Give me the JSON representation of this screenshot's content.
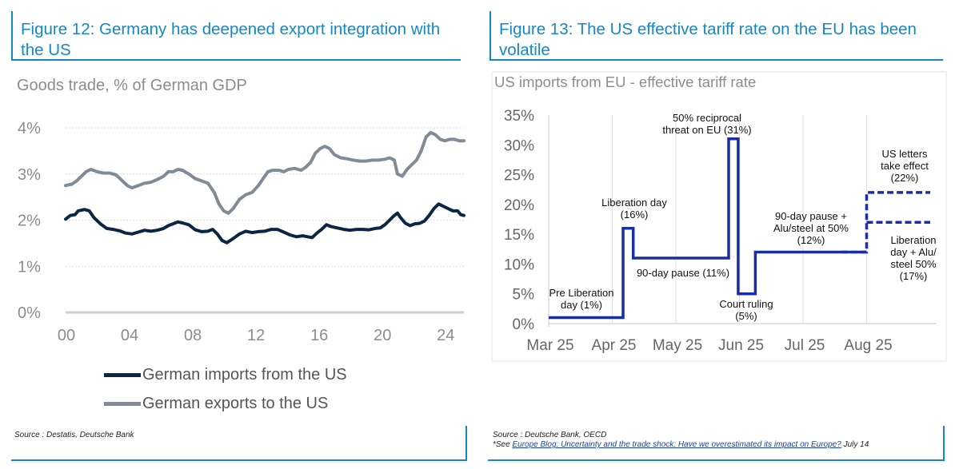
{
  "panels": {
    "left": {
      "title": "Figure 12: Germany has deepened export integration with the US",
      "subtitle": "Goods trade, % of German GDP",
      "source": "Source : Destatis, Deutsche Bank"
    },
    "right": {
      "title": "Figure 13: The US effective tariff rate on the EU has been volatile",
      "subtitle": "US imports from EU - effective tariff rate",
      "source": "Source : Deutsche Bank, OECD",
      "note_prefix": "*See ",
      "note_link": "Europe Blog: Uncertainty and the trade shock: Have we overestimated its impact on Europe?",
      "note_suffix": " July 14"
    }
  },
  "chart_data": [
    {
      "type": "line",
      "x_ticks": [
        "00",
        "04",
        "08",
        "12",
        "16",
        "20",
        "24"
      ],
      "y_ticks": [
        "0%",
        "1%",
        "2%",
        "3%",
        "4%"
      ],
      "ylim": [
        0,
        4
      ],
      "xlim": [
        2000,
        2025.2
      ],
      "grid": "horizontal",
      "legend_placement": "bottom",
      "series": [
        {
          "name": "German imports from the US",
          "color": "#0b2645",
          "points": [
            [
              2000.0,
              2.02
            ],
            [
              2000.3,
              2.1
            ],
            [
              2000.6,
              2.12
            ],
            [
              2000.8,
              2.2
            ],
            [
              2001.2,
              2.23
            ],
            [
              2001.5,
              2.2
            ],
            [
              2001.8,
              2.05
            ],
            [
              2002.2,
              1.92
            ],
            [
              2002.6,
              1.82
            ],
            [
              2003.0,
              1.8
            ],
            [
              2003.4,
              1.77
            ],
            [
              2003.8,
              1.72
            ],
            [
              2004.2,
              1.7
            ],
            [
              2004.6,
              1.74
            ],
            [
              2005.0,
              1.78
            ],
            [
              2005.4,
              1.76
            ],
            [
              2005.8,
              1.78
            ],
            [
              2006.2,
              1.82
            ],
            [
              2006.5,
              1.88
            ],
            [
              2006.8,
              1.92
            ],
            [
              2007.1,
              1.96
            ],
            [
              2007.4,
              1.94
            ],
            [
              2007.8,
              1.9
            ],
            [
              2008.2,
              1.79
            ],
            [
              2008.6,
              1.75
            ],
            [
              2009.0,
              1.76
            ],
            [
              2009.3,
              1.8
            ],
            [
              2009.6,
              1.7
            ],
            [
              2009.9,
              1.56
            ],
            [
              2010.2,
              1.51
            ],
            [
              2010.6,
              1.6
            ],
            [
              2011.0,
              1.7
            ],
            [
              2011.4,
              1.76
            ],
            [
              2011.8,
              1.73
            ],
            [
              2012.2,
              1.75
            ],
            [
              2012.6,
              1.76
            ],
            [
              2013.0,
              1.8
            ],
            [
              2013.4,
              1.8
            ],
            [
              2013.8,
              1.74
            ],
            [
              2014.2,
              1.68
            ],
            [
              2014.6,
              1.64
            ],
            [
              2015.0,
              1.66
            ],
            [
              2015.3,
              1.64
            ],
            [
              2015.6,
              1.62
            ],
            [
              2015.9,
              1.72
            ],
            [
              2016.2,
              1.8
            ],
            [
              2016.5,
              1.9
            ],
            [
              2016.8,
              1.86
            ],
            [
              2017.2,
              1.83
            ],
            [
              2017.6,
              1.8
            ],
            [
              2018.0,
              1.78
            ],
            [
              2018.4,
              1.8
            ],
            [
              2018.8,
              1.8
            ],
            [
              2019.2,
              1.79
            ],
            [
              2019.6,
              1.82
            ],
            [
              2019.9,
              1.83
            ],
            [
              2020.2,
              1.9
            ],
            [
              2020.5,
              2.0
            ],
            [
              2020.8,
              2.1
            ],
            [
              2021.0,
              2.15
            ],
            [
              2021.2,
              2.05
            ],
            [
              2021.5,
              1.93
            ],
            [
              2021.8,
              1.88
            ],
            [
              2022.1,
              1.92
            ],
            [
              2022.4,
              1.93
            ],
            [
              2022.7,
              1.98
            ],
            [
              2023.0,
              2.1
            ],
            [
              2023.3,
              2.25
            ],
            [
              2023.6,
              2.35
            ],
            [
              2023.9,
              2.3
            ],
            [
              2024.2,
              2.25
            ],
            [
              2024.5,
              2.2
            ],
            [
              2024.8,
              2.2
            ],
            [
              2025.0,
              2.12
            ],
            [
              2025.2,
              2.1
            ]
          ]
        },
        {
          "name": "German exports to the US",
          "color": "#7f8b96",
          "points": [
            [
              2000.0,
              2.75
            ],
            [
              2000.4,
              2.78
            ],
            [
              2000.7,
              2.85
            ],
            [
              2001.0,
              2.95
            ],
            [
              2001.3,
              3.05
            ],
            [
              2001.6,
              3.1
            ],
            [
              2002.0,
              3.05
            ],
            [
              2002.4,
              3.02
            ],
            [
              2002.8,
              3.02
            ],
            [
              2003.2,
              2.98
            ],
            [
              2003.6,
              2.85
            ],
            [
              2003.9,
              2.75
            ],
            [
              2004.2,
              2.7
            ],
            [
              2004.6,
              2.75
            ],
            [
              2005.0,
              2.8
            ],
            [
              2005.4,
              2.82
            ],
            [
              2005.8,
              2.88
            ],
            [
              2006.2,
              2.95
            ],
            [
              2006.5,
              3.05
            ],
            [
              2006.8,
              3.05
            ],
            [
              2007.1,
              3.1
            ],
            [
              2007.4,
              3.08
            ],
            [
              2007.8,
              3.0
            ],
            [
              2008.2,
              2.9
            ],
            [
              2008.6,
              2.85
            ],
            [
              2009.0,
              2.8
            ],
            [
              2009.4,
              2.6
            ],
            [
              2009.7,
              2.35
            ],
            [
              2010.0,
              2.2
            ],
            [
              2010.3,
              2.15
            ],
            [
              2010.6,
              2.25
            ],
            [
              2011.0,
              2.45
            ],
            [
              2011.4,
              2.55
            ],
            [
              2011.8,
              2.6
            ],
            [
              2012.2,
              2.75
            ],
            [
              2012.5,
              2.9
            ],
            [
              2012.8,
              3.05
            ],
            [
              2013.1,
              3.08
            ],
            [
              2013.5,
              3.08
            ],
            [
              2013.8,
              3.05
            ],
            [
              2014.1,
              3.1
            ],
            [
              2014.5,
              3.12
            ],
            [
              2014.9,
              3.08
            ],
            [
              2015.2,
              3.15
            ],
            [
              2015.5,
              3.25
            ],
            [
              2015.8,
              3.45
            ],
            [
              2016.1,
              3.55
            ],
            [
              2016.4,
              3.6
            ],
            [
              2016.7,
              3.55
            ],
            [
              2017.0,
              3.42
            ],
            [
              2017.4,
              3.35
            ],
            [
              2017.8,
              3.33
            ],
            [
              2018.2,
              3.3
            ],
            [
              2018.6,
              3.28
            ],
            [
              2019.0,
              3.28
            ],
            [
              2019.4,
              3.3
            ],
            [
              2019.8,
              3.3
            ],
            [
              2020.2,
              3.32
            ],
            [
              2020.5,
              3.35
            ],
            [
              2020.8,
              3.3
            ],
            [
              2021.0,
              3.0
            ],
            [
              2021.3,
              2.95
            ],
            [
              2021.6,
              3.1
            ],
            [
              2021.9,
              3.2
            ],
            [
              2022.2,
              3.3
            ],
            [
              2022.5,
              3.5
            ],
            [
              2022.8,
              3.8
            ],
            [
              2023.1,
              3.9
            ],
            [
              2023.4,
              3.85
            ],
            [
              2023.7,
              3.75
            ],
            [
              2024.0,
              3.72
            ],
            [
              2024.3,
              3.75
            ],
            [
              2024.6,
              3.75
            ],
            [
              2024.9,
              3.72
            ],
            [
              2025.2,
              3.72
            ]
          ]
        }
      ]
    },
    {
      "type": "line",
      "x_ticks": [
        "Mar 25",
        "Apr 25",
        "May 25",
        "Jun 25",
        "Jul 25",
        "Aug 25"
      ],
      "y_ticks": [
        "0%",
        "5%",
        "10%",
        "15%",
        "20%",
        "25%",
        "30%",
        "35%"
      ],
      "ylim": [
        0,
        35
      ],
      "xlim": [
        0,
        6.1
      ],
      "grid": "vertical",
      "line_color": "#1a2ea3",
      "series": [
        {
          "name": "",
          "style": "solid",
          "points": [
            [
              0.0,
              1
            ],
            [
              1.17,
              1
            ],
            [
              1.17,
              16
            ],
            [
              1.33,
              16
            ],
            [
              1.33,
              11
            ],
            [
              2.83,
              11
            ],
            [
              2.83,
              31
            ],
            [
              2.98,
              31
            ],
            [
              2.98,
              5
            ],
            [
              3.25,
              5
            ],
            [
              3.25,
              12
            ],
            [
              5.0,
              12
            ]
          ]
        },
        {
          "name": "",
          "style": "dashed",
          "points": [
            [
              4.6,
              12
            ],
            [
              5.0,
              12
            ],
            [
              5.0,
              22
            ],
            [
              6.0,
              22
            ]
          ]
        },
        {
          "name": "",
          "style": "dashed",
          "points": [
            [
              5.0,
              17
            ],
            [
              6.0,
              17
            ]
          ]
        }
      ],
      "annotations": [
        {
          "lines": [
            "Pre Liberation",
            "day (1%)"
          ]
        },
        {
          "lines": [
            "Liberation day",
            "(16%)"
          ]
        },
        {
          "lines": [
            "90-day pause (11%)"
          ]
        },
        {
          "lines": [
            "50% reciprocal",
            "threat on EU (31%)"
          ]
        },
        {
          "lines": [
            "Court ruling",
            "(5%)"
          ]
        },
        {
          "lines": [
            "90-day pause +",
            "Alu/steel at 50%",
            "(12%)"
          ]
        },
        {
          "lines": [
            "US letters",
            "take effect",
            "(22%)"
          ]
        },
        {
          "lines": [
            "Liberation",
            "day + Alu/",
            "steel 50%",
            "(17%)"
          ]
        }
      ]
    }
  ]
}
